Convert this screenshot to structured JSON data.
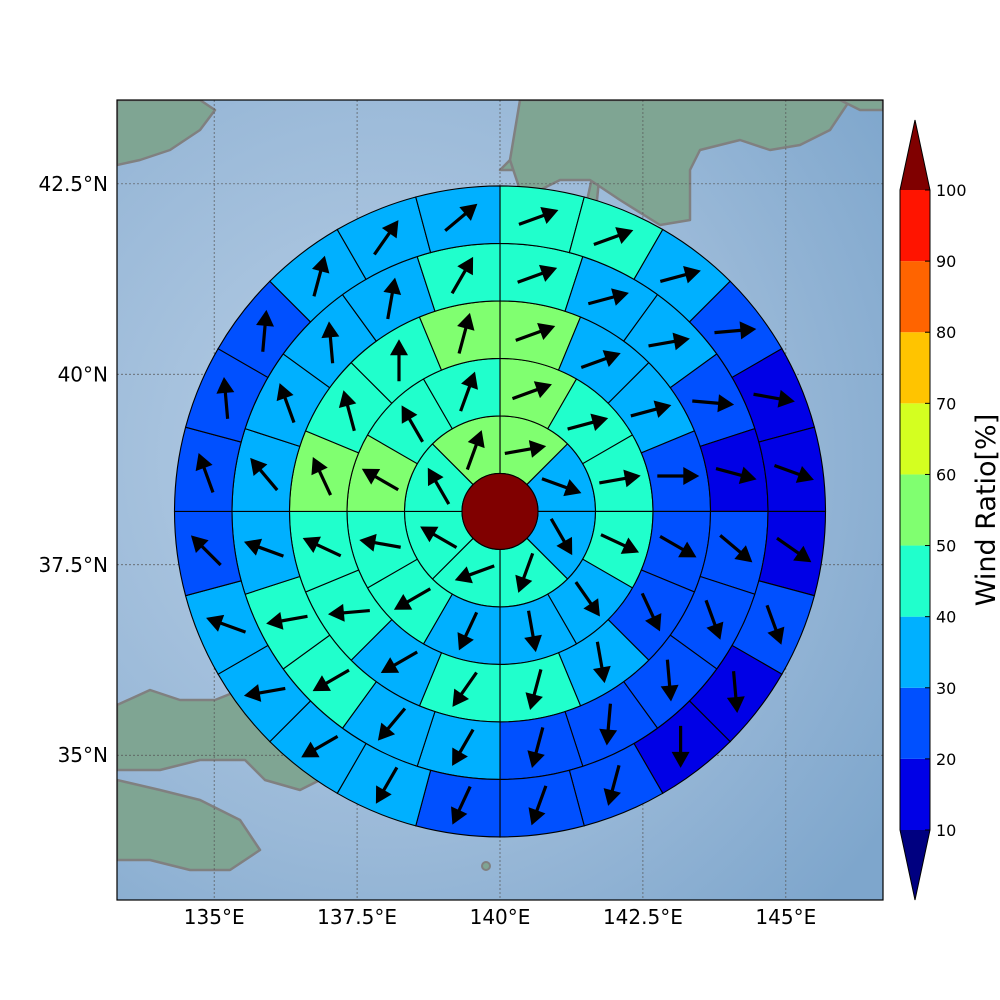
{
  "map": {
    "lon_range": [
      133.3,
      146.7
    ],
    "lat_range": [
      33.1,
      43.6
    ],
    "x_ticks": [
      {
        "value": 135,
        "label": "135°E"
      },
      {
        "value": 137.5,
        "label": "137.5°E"
      },
      {
        "value": 140,
        "label": "140°E"
      },
      {
        "value": 142.5,
        "label": "142.5°E"
      },
      {
        "value": 145,
        "label": "145°E"
      }
    ],
    "y_ticks": [
      {
        "value": 42.5,
        "label": "42.5°N"
      },
      {
        "value": 40,
        "label": "40°N"
      },
      {
        "value": 37.5,
        "label": "37.5°N"
      },
      {
        "value": 35,
        "label": "35°N"
      }
    ],
    "gridlines": true,
    "coastline_color": "#808080",
    "ocean_color": "#9ab9d8",
    "land_color": "#7fa593"
  },
  "polar_grid": {
    "center_lon": 140.0,
    "center_lat": 38.2,
    "center_disk_color": "#800000",
    "rings": 5,
    "ring_sectors": [
      8,
      12,
      16,
      20,
      24
    ],
    "ring_values": [
      [
        55,
        35,
        30,
        40,
        45,
        40,
        45,
        50
      ],
      [
        55,
        45,
        40,
        40,
        35,
        30,
        30,
        40,
        45,
        55,
        45,
        45
      ],
      [
        55,
        35,
        35,
        25,
        25,
        20,
        35,
        40,
        40,
        35,
        40,
        45,
        55,
        45,
        45,
        55
      ],
      [
        45,
        35,
        30,
        25,
        15,
        25,
        20,
        20,
        20,
        25,
        30,
        35,
        40,
        40,
        35,
        35,
        35,
        30,
        35,
        45
      ],
      [
        45,
        45,
        30,
        20,
        15,
        15,
        15,
        20,
        15,
        15,
        20,
        20,
        25,
        35,
        30,
        35,
        35,
        25,
        25,
        20,
        25,
        30,
        30,
        35
      ]
    ],
    "ring_dirs": [
      [
        80,
        110,
        150,
        200,
        250,
        300,
        330,
        20
      ],
      [
        70,
        75,
        80,
        115,
        145,
        170,
        205,
        240,
        280,
        300,
        330,
        20
      ],
      [
        70,
        70,
        75,
        90,
        120,
        155,
        170,
        195,
        215,
        240,
        265,
        295,
        335,
        345,
        0,
        15
      ],
      [
        70,
        75,
        80,
        95,
        105,
        130,
        160,
        175,
        185,
        195,
        210,
        220,
        240,
        260,
        290,
        320,
        340,
        355,
        10,
        30
      ],
      [
        70,
        70,
        75,
        85,
        100,
        110,
        125,
        160,
        175,
        180,
        195,
        200,
        205,
        210,
        240,
        260,
        290,
        315,
        340,
        355,
        5,
        15,
        35,
        50
      ]
    ]
  },
  "colorbar": {
    "title": "Wind Ratio[%]",
    "levels": [
      10,
      20,
      30,
      40,
      50,
      60,
      70,
      80,
      90,
      100
    ],
    "tick_labels": [
      "10",
      "20",
      "30",
      "40",
      "50",
      "60",
      "70",
      "80",
      "90",
      "100"
    ],
    "colors": [
      "#0000e6",
      "#0050ff",
      "#00b0ff",
      "#20ffcc",
      "#80ff70",
      "#d4ff20",
      "#ffc400",
      "#ff6400",
      "#ff1400"
    ],
    "under_color": "#000080",
    "over_color": "#800000",
    "extend": "both"
  },
  "arrow_color": "#000000"
}
